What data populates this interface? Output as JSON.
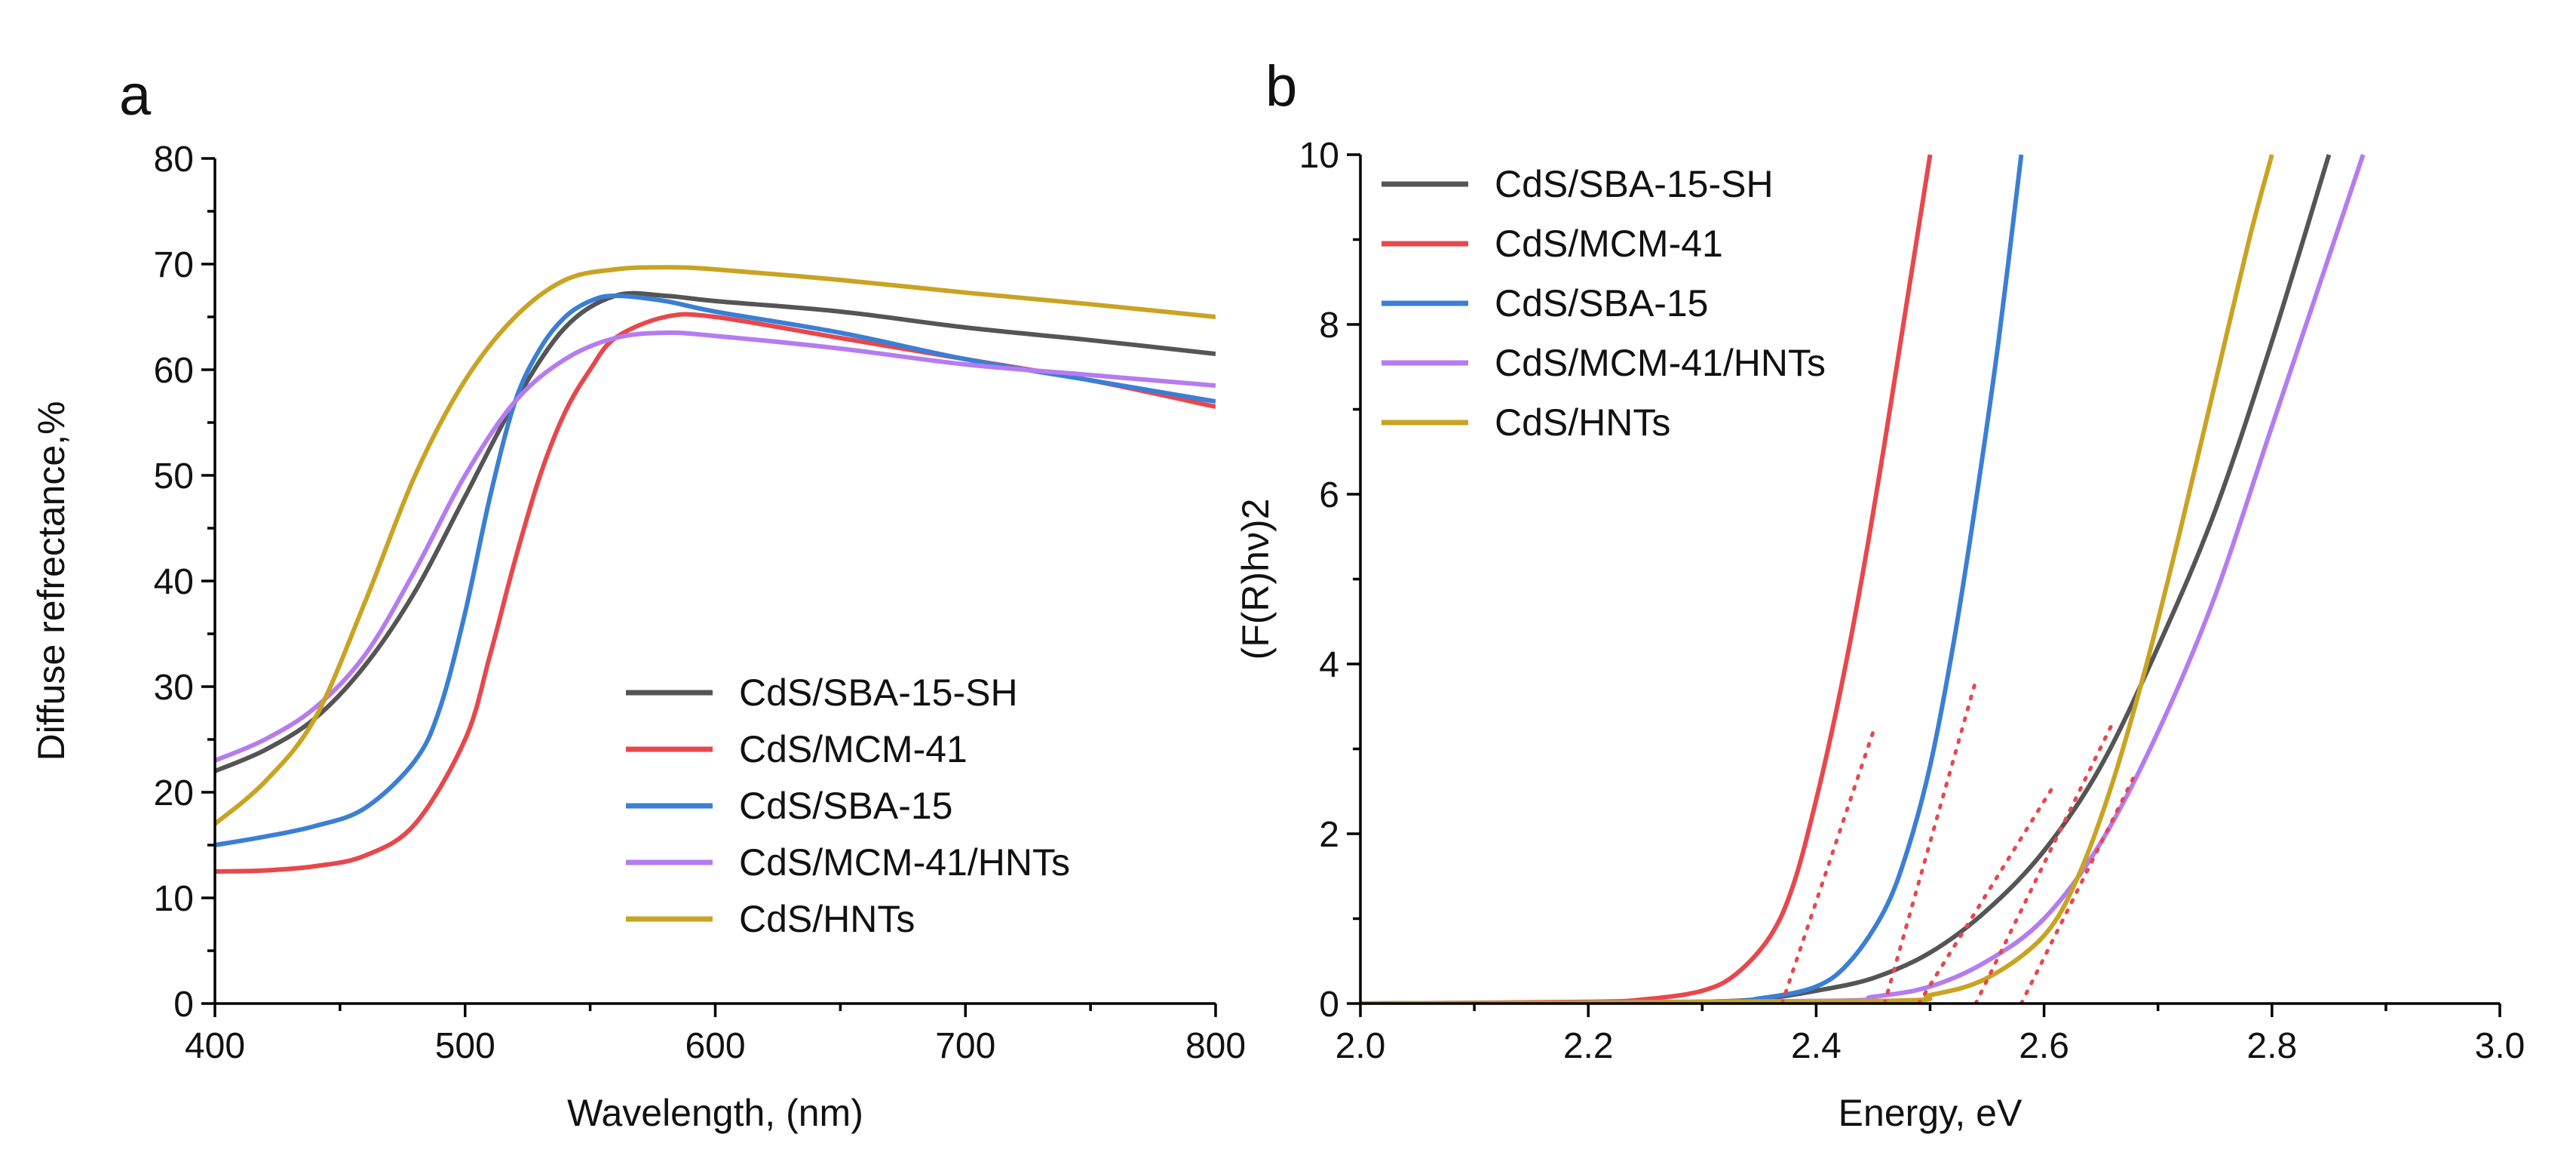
{
  "chart_data": [
    {
      "panel_label": "a",
      "type": "line",
      "xlabel": "Wavelength, (nm)",
      "ylabel": "Diffuse refrectance,%",
      "xlim": [
        400,
        800
      ],
      "ylim": [
        0,
        80
      ],
      "x_ticks": [
        400,
        500,
        600,
        700,
        800
      ],
      "y_ticks": [
        0,
        10,
        20,
        30,
        40,
        50,
        60,
        70,
        80
      ],
      "legend_position": "bottom-right",
      "grid": false,
      "series": [
        {
          "name": "CdS/SBA-15-SH",
          "color": "#555555",
          "x": [
            400,
            420,
            440,
            460,
            480,
            500,
            520,
            540,
            560,
            580,
            600,
            650,
            700,
            750,
            800
          ],
          "y": [
            22,
            24,
            27,
            32,
            39,
            48,
            57,
            64,
            67,
            67,
            66.5,
            65.5,
            64,
            62.8,
            61.5
          ]
        },
        {
          "name": "CdS/MCM-41",
          "color": "#e8474c",
          "x": [
            400,
            420,
            440,
            460,
            480,
            500,
            510,
            520,
            530,
            540,
            550,
            560,
            580,
            600,
            650,
            700,
            750,
            800
          ],
          "y": [
            12.5,
            12.6,
            13,
            14,
            17,
            25,
            33,
            42,
            50,
            56,
            60,
            63,
            65,
            65,
            63,
            61,
            59,
            56.5
          ]
        },
        {
          "name": "CdS/SBA-15",
          "color": "#3a7fd5",
          "x": [
            400,
            420,
            440,
            460,
            480,
            490,
            500,
            510,
            520,
            530,
            540,
            550,
            560,
            580,
            600,
            650,
            700,
            750,
            800
          ],
          "y": [
            15,
            15.8,
            16.8,
            18.5,
            23,
            28,
            37,
            48,
            57,
            62,
            65,
            66.5,
            67,
            66.5,
            65.5,
            63.5,
            61,
            59,
            57
          ]
        },
        {
          "name": "CdS/MCM-41/HNTs",
          "color": "#b57cf0",
          "x": [
            400,
            420,
            440,
            460,
            480,
            500,
            520,
            540,
            560,
            580,
            600,
            650,
            700,
            750,
            800
          ],
          "y": [
            23,
            25,
            28,
            33,
            41,
            50,
            57,
            61,
            63,
            63.5,
            63.2,
            62,
            60.5,
            59.5,
            58.5
          ]
        },
        {
          "name": "CdS/HNTs",
          "color": "#c9a322",
          "x": [
            400,
            420,
            440,
            460,
            480,
            500,
            520,
            540,
            560,
            580,
            600,
            650,
            700,
            750,
            800
          ],
          "y": [
            17,
            21,
            27,
            38,
            50,
            59,
            65,
            68.5,
            69.5,
            69.7,
            69.5,
            68.5,
            67.3,
            66.2,
            65
          ]
        }
      ]
    },
    {
      "panel_label": "b",
      "type": "line",
      "xlabel": "Energy, eV",
      "ylabel": "(F(R)hν)2",
      "xlim": [
        2.0,
        3.0
      ],
      "ylim": [
        0,
        10
      ],
      "x_ticks": [
        "2.0",
        "2.2",
        "2.4",
        "2.6",
        "2.8",
        "3.0"
      ],
      "y_ticks": [
        0,
        2,
        4,
        6,
        8,
        10
      ],
      "legend_position": "top-left",
      "grid": false,
      "series": [
        {
          "name": "CdS/SBA-15-SH",
          "color": "#555555",
          "x": [
            2.0,
            2.2,
            2.3,
            2.35,
            2.4,
            2.45,
            2.5,
            2.55,
            2.6,
            2.65,
            2.7,
            2.75,
            2.8,
            2.85
          ],
          "y": [
            0,
            0,
            0.02,
            0.05,
            0.15,
            0.3,
            0.6,
            1.1,
            1.8,
            2.8,
            4.2,
            5.8,
            7.8,
            10
          ]
        },
        {
          "name": "CdS/MCM-41",
          "color": "#e8474c",
          "x": [
            2.0,
            2.2,
            2.25,
            2.3,
            2.33,
            2.36,
            2.38,
            2.4,
            2.42,
            2.44,
            2.46,
            2.48,
            2.5
          ],
          "y": [
            0,
            0.02,
            0.05,
            0.15,
            0.35,
            0.8,
            1.4,
            2.4,
            3.6,
            5.0,
            6.6,
            8.3,
            10
          ]
        },
        {
          "name": "CdS/SBA-15",
          "color": "#3a7fd5",
          "x": [
            2.0,
            2.3,
            2.35,
            2.4,
            2.43,
            2.46,
            2.48,
            2.5,
            2.52,
            2.54,
            2.56,
            2.58
          ],
          "y": [
            0,
            0.02,
            0.06,
            0.2,
            0.5,
            1.1,
            1.8,
            2.8,
            4.2,
            5.9,
            7.8,
            10
          ]
        },
        {
          "name": "CdS/MCM-41/HNTs",
          "color": "#b57cf0",
          "x": [
            2.0,
            2.4,
            2.45,
            2.5,
            2.55,
            2.6,
            2.65,
            2.7,
            2.75,
            2.8,
            2.85,
            2.88
          ],
          "y": [
            0,
            0.03,
            0.08,
            0.2,
            0.5,
            1.0,
            1.9,
            3.2,
            4.8,
            6.8,
            8.8,
            10
          ]
        },
        {
          "name": "CdS/HNTs",
          "color": "#c9a322",
          "x": [
            2.0,
            2.45,
            2.5,
            2.55,
            2.6,
            2.63,
            2.66,
            2.69,
            2.72,
            2.75,
            2.78,
            2.8
          ],
          "y": [
            0,
            0.03,
            0.1,
            0.3,
            0.8,
            1.5,
            2.6,
            4.0,
            5.6,
            7.3,
            9.0,
            10
          ]
        }
      ],
      "annotations": [
        {
          "type": "tangent-dotted",
          "color": "#e8474c",
          "x": [
            2.37,
            2.45
          ],
          "y": [
            0,
            3.2
          ]
        },
        {
          "type": "tangent-dotted",
          "color": "#e8474c",
          "x": [
            2.46,
            2.54
          ],
          "y": [
            0,
            3.8
          ]
        },
        {
          "type": "tangent-dotted",
          "color": "#e8474c",
          "x": [
            2.49,
            2.61
          ],
          "y": [
            0,
            2.6
          ]
        },
        {
          "type": "tangent-dotted",
          "color": "#e8474c",
          "x": [
            2.54,
            2.66
          ],
          "y": [
            0,
            3.3
          ]
        },
        {
          "type": "tangent-dotted",
          "color": "#e8474c",
          "x": [
            2.58,
            2.68
          ],
          "y": [
            0,
            2.7
          ]
        }
      ]
    }
  ]
}
